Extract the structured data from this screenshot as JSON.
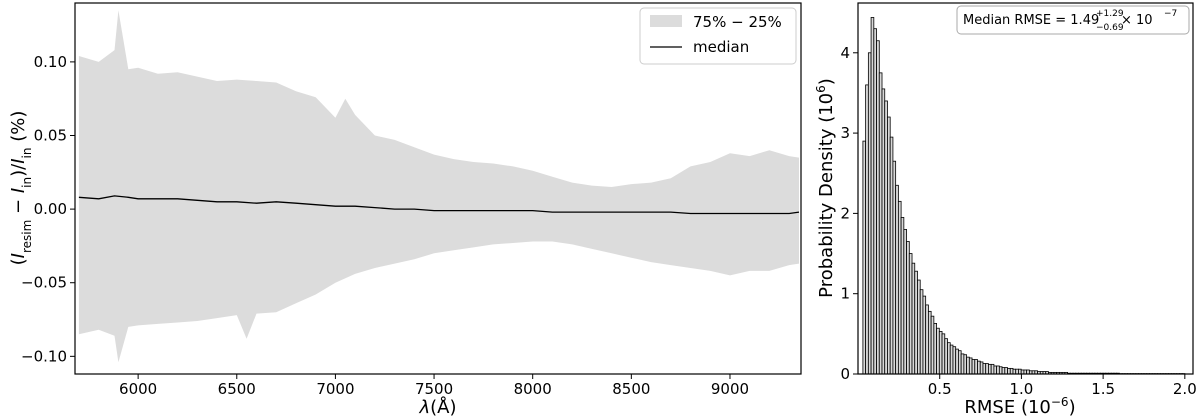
{
  "chart_data": [
    {
      "type": "area",
      "xlabel_parts": {
        "lambda": "λ",
        "unit": "(Å)"
      },
      "ylabel_parts": {
        "open": "(",
        "I1": "I",
        "sub1": "resim",
        "minus": " − ",
        "I2": "I",
        "sub2": "in",
        "close": ")/",
        "I3": "I",
        "sub3": "in",
        "unit": " (%)"
      },
      "xlim": [
        5680,
        9360
      ],
      "ylim": [
        -0.112,
        0.14
      ],
      "x_ticks": [
        6000,
        6500,
        7000,
        7500,
        8000,
        8500,
        9000
      ],
      "y_ticks": [
        -0.1,
        -0.05,
        0.0,
        0.05,
        0.1
      ],
      "y_tick_labels": [
        "−0.10",
        "−0.05",
        "0.00",
        "0.05",
        "0.10"
      ],
      "legend": {
        "placement": "top-right",
        "band_label": "75% − 25%",
        "line_label": "median"
      },
      "band_color": "#dcdcdc",
      "line_color": "#000000",
      "band_upper": {
        "x": [
          5700,
          5800,
          5880,
          5900,
          5950,
          6000,
          6100,
          6200,
          6300,
          6400,
          6500,
          6600,
          6700,
          6800,
          6900,
          7000,
          7050,
          7100,
          7200,
          7300,
          7400,
          7500,
          7600,
          7700,
          7800,
          7900,
          8000,
          8100,
          8200,
          8300,
          8400,
          8500,
          8600,
          8700,
          8800,
          8900,
          9000,
          9100,
          9200,
          9300,
          9350
        ],
        "y": [
          0.104,
          0.1,
          0.108,
          0.135,
          0.095,
          0.096,
          0.092,
          0.093,
          0.09,
          0.087,
          0.088,
          0.087,
          0.086,
          0.08,
          0.076,
          0.062,
          0.075,
          0.064,
          0.05,
          0.047,
          0.042,
          0.037,
          0.034,
          0.032,
          0.031,
          0.029,
          0.026,
          0.022,
          0.018,
          0.016,
          0.015,
          0.017,
          0.018,
          0.021,
          0.029,
          0.032,
          0.038,
          0.036,
          0.04,
          0.036,
          0.035
        ]
      },
      "band_lower": {
        "x": [
          5700,
          5800,
          5880,
          5900,
          5950,
          6000,
          6100,
          6200,
          6300,
          6400,
          6500,
          6550,
          6600,
          6700,
          6800,
          6900,
          7000,
          7100,
          7200,
          7300,
          7400,
          7500,
          7600,
          7700,
          7800,
          7900,
          8000,
          8100,
          8200,
          8300,
          8400,
          8500,
          8600,
          8700,
          8800,
          8900,
          9000,
          9100,
          9200,
          9300,
          9350
        ],
        "y": [
          -0.085,
          -0.082,
          -0.086,
          -0.104,
          -0.08,
          -0.079,
          -0.078,
          -0.077,
          -0.076,
          -0.074,
          -0.072,
          -0.088,
          -0.071,
          -0.07,
          -0.064,
          -0.058,
          -0.05,
          -0.044,
          -0.04,
          -0.037,
          -0.034,
          -0.03,
          -0.028,
          -0.026,
          -0.024,
          -0.023,
          -0.022,
          -0.022,
          -0.024,
          -0.027,
          -0.03,
          -0.033,
          -0.036,
          -0.038,
          -0.04,
          -0.042,
          -0.045,
          -0.042,
          -0.042,
          -0.038,
          -0.037
        ]
      },
      "median": {
        "x": [
          5700,
          5800,
          5880,
          5950,
          6000,
          6100,
          6200,
          6300,
          6400,
          6500,
          6600,
          6700,
          6800,
          6900,
          7000,
          7100,
          7200,
          7300,
          7400,
          7500,
          7600,
          7700,
          7800,
          7900,
          8000,
          8100,
          8200,
          8300,
          8400,
          8500,
          8600,
          8700,
          8800,
          8900,
          9000,
          9100,
          9200,
          9300,
          9350
        ],
        "y": [
          0.008,
          0.007,
          0.009,
          0.008,
          0.007,
          0.007,
          0.007,
          0.006,
          0.005,
          0.005,
          0.004,
          0.005,
          0.004,
          0.003,
          0.002,
          0.002,
          0.001,
          0.0,
          0.0,
          -0.001,
          -0.001,
          -0.001,
          -0.001,
          -0.001,
          -0.001,
          -0.002,
          -0.002,
          -0.002,
          -0.002,
          -0.002,
          -0.002,
          -0.002,
          -0.003,
          -0.003,
          -0.003,
          -0.003,
          -0.003,
          -0.003,
          -0.002
        ]
      }
    },
    {
      "type": "bar",
      "xlabel_parts": {
        "text": "RMSE (10",
        "sup": "−6",
        "close": ")"
      },
      "ylabel_parts": {
        "text": "Probability Density (10",
        "sup": "6",
        "close": ")"
      },
      "xlim": [
        0.0,
        2.05
      ],
      "ylim": [
        0,
        4.62
      ],
      "x_ticks": [
        0.5,
        1.0,
        1.5,
        2.0
      ],
      "x_tick_labels": [
        "0.5",
        "1.0",
        "1.5",
        "2.0"
      ],
      "y_ticks": [
        0,
        1,
        2,
        3,
        4
      ],
      "y_tick_labels": [
        "0",
        "1",
        "2",
        "3",
        "4"
      ],
      "annotation_parts": {
        "text": "Median RMSE = 1.49",
        "sup": "+1.29",
        "sub": "−0.69",
        "tail": " × 10",
        "exp": "−7",
        "placement": "top-right"
      },
      "bar_color": "#d8d8d8",
      "edge_color": "#000000",
      "bin_width": 0.0167,
      "bin_starts": [
        0.03,
        0.0467,
        0.0634,
        0.0801,
        0.0968,
        0.1135,
        0.1302,
        0.1469,
        0.1636,
        0.1803,
        0.197,
        0.2137,
        0.2304,
        0.2471,
        0.2638,
        0.2805,
        0.2972,
        0.3139,
        0.3306,
        0.3473,
        0.364,
        0.3807,
        0.3974,
        0.4141,
        0.4308,
        0.4475,
        0.4642,
        0.4809,
        0.4976,
        0.5143,
        0.531,
        0.5477,
        0.5644,
        0.5811,
        0.5978,
        0.6145,
        0.6312,
        0.6479,
        0.6646,
        0.6813,
        0.698,
        0.7147,
        0.7314,
        0.7481,
        0.7648,
        0.7815,
        0.7982,
        0.8149,
        0.8316,
        0.8483,
        0.865,
        0.8817,
        0.8984,
        0.9151,
        0.9318,
        0.9485,
        0.9652,
        0.9819,
        0.9986,
        1.0153,
        1.032,
        1.0487,
        1.0654,
        1.0821,
        1.0988,
        1.1155,
        1.1322,
        1.1489,
        1.1656,
        1.1823,
        1.199,
        1.2157,
        1.2324,
        1.2491,
        1.2658,
        1.2825,
        1.2992,
        1.3159,
        1.3326,
        1.3493,
        1.366,
        1.3827,
        1.3994,
        1.4161,
        1.4328,
        1.4495,
        1.4662,
        1.4829,
        1.4996,
        1.5163,
        1.533,
        1.5497,
        1.5664,
        1.5831,
        1.5998,
        1.6165,
        1.6332,
        1.6499,
        1.6666,
        1.6833,
        1.7,
        1.7167,
        1.7334,
        1.7501,
        1.7668,
        1.7835,
        1.8002,
        1.8169,
        1.8336,
        1.8503,
        1.867,
        1.8837,
        1.9004,
        1.9171,
        1.9338,
        1.9505,
        1.9672,
        1.9839
      ],
      "values": [
        2.9,
        3.6,
        4.0,
        4.44,
        4.3,
        4.15,
        3.75,
        3.55,
        3.4,
        3.2,
        2.95,
        2.65,
        2.35,
        2.15,
        1.95,
        1.8,
        1.65,
        1.5,
        1.38,
        1.28,
        1.17,
        1.05,
        0.97,
        0.86,
        0.78,
        0.72,
        0.63,
        0.57,
        0.53,
        0.5,
        0.44,
        0.39,
        0.36,
        0.34,
        0.31,
        0.29,
        0.25,
        0.24,
        0.21,
        0.2,
        0.18,
        0.18,
        0.16,
        0.15,
        0.13,
        0.13,
        0.12,
        0.12,
        0.1,
        0.1,
        0.09,
        0.08,
        0.08,
        0.07,
        0.07,
        0.06,
        0.06,
        0.06,
        0.05,
        0.05,
        0.05,
        0.04,
        0.04,
        0.04,
        0.03,
        0.03,
        0.03,
        0.03,
        0.02,
        0.02,
        0.02,
        0.02,
        0.02,
        0.02,
        0.02,
        0.01,
        0.01,
        0.01,
        0.01,
        0.01,
        0.01,
        0.01,
        0.01,
        0.01,
        0.01,
        0.01,
        0.01,
        0.01,
        0.01,
        0.01,
        0.01,
        0.01,
        0.01,
        0.01,
        0.005,
        0.005,
        0.005,
        0.005,
        0.005,
        0.005,
        0.005,
        0.005,
        0.005,
        0.005,
        0.005,
        0.005,
        0.005,
        0.005,
        0.005,
        0.005,
        0.005,
        0.005,
        0.005,
        0.005,
        0.005,
        0.005,
        0.005,
        0.005
      ]
    }
  ]
}
